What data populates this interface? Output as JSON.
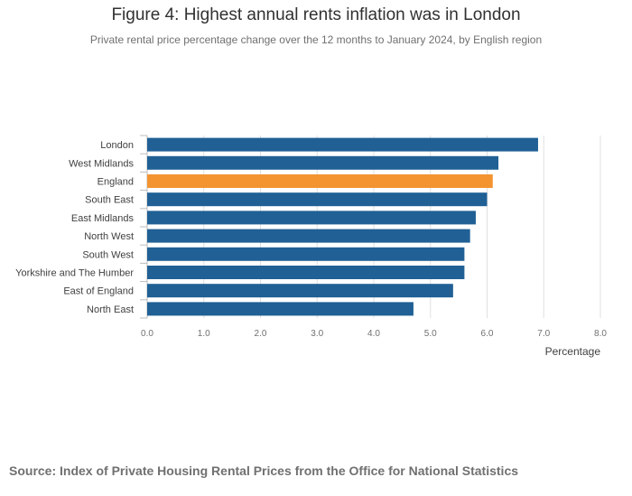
{
  "chart_data": {
    "type": "bar",
    "orientation": "horizontal",
    "title": "Figure 4: Highest annual rents inflation was in London",
    "subtitle": "Private rental price percentage change over the 12 months to January 2024, by English region",
    "xlabel": "Percentage",
    "ylabel": "",
    "xlim": [
      0,
      8
    ],
    "x_ticks": [
      "0.0",
      "1.0",
      "2.0",
      "3.0",
      "4.0",
      "5.0",
      "6.0",
      "7.0",
      "8.0"
    ],
    "categories": [
      "London",
      "West Midlands",
      "England",
      "South East",
      "East Midlands",
      "North West",
      "South West",
      "Yorkshire and The Humber",
      "East of England",
      "North East"
    ],
    "values": [
      6.9,
      6.2,
      6.1,
      6.0,
      5.8,
      5.7,
      5.6,
      5.6,
      5.4,
      4.7
    ],
    "highlight": "England",
    "colors": {
      "bar": "#206095",
      "highlight": "#F39431",
      "grid": "#e0e0e0"
    },
    "grid": true,
    "legend": "none"
  },
  "source": "Source: Index of Private Housing Rental Prices from the Office for National Statistics"
}
